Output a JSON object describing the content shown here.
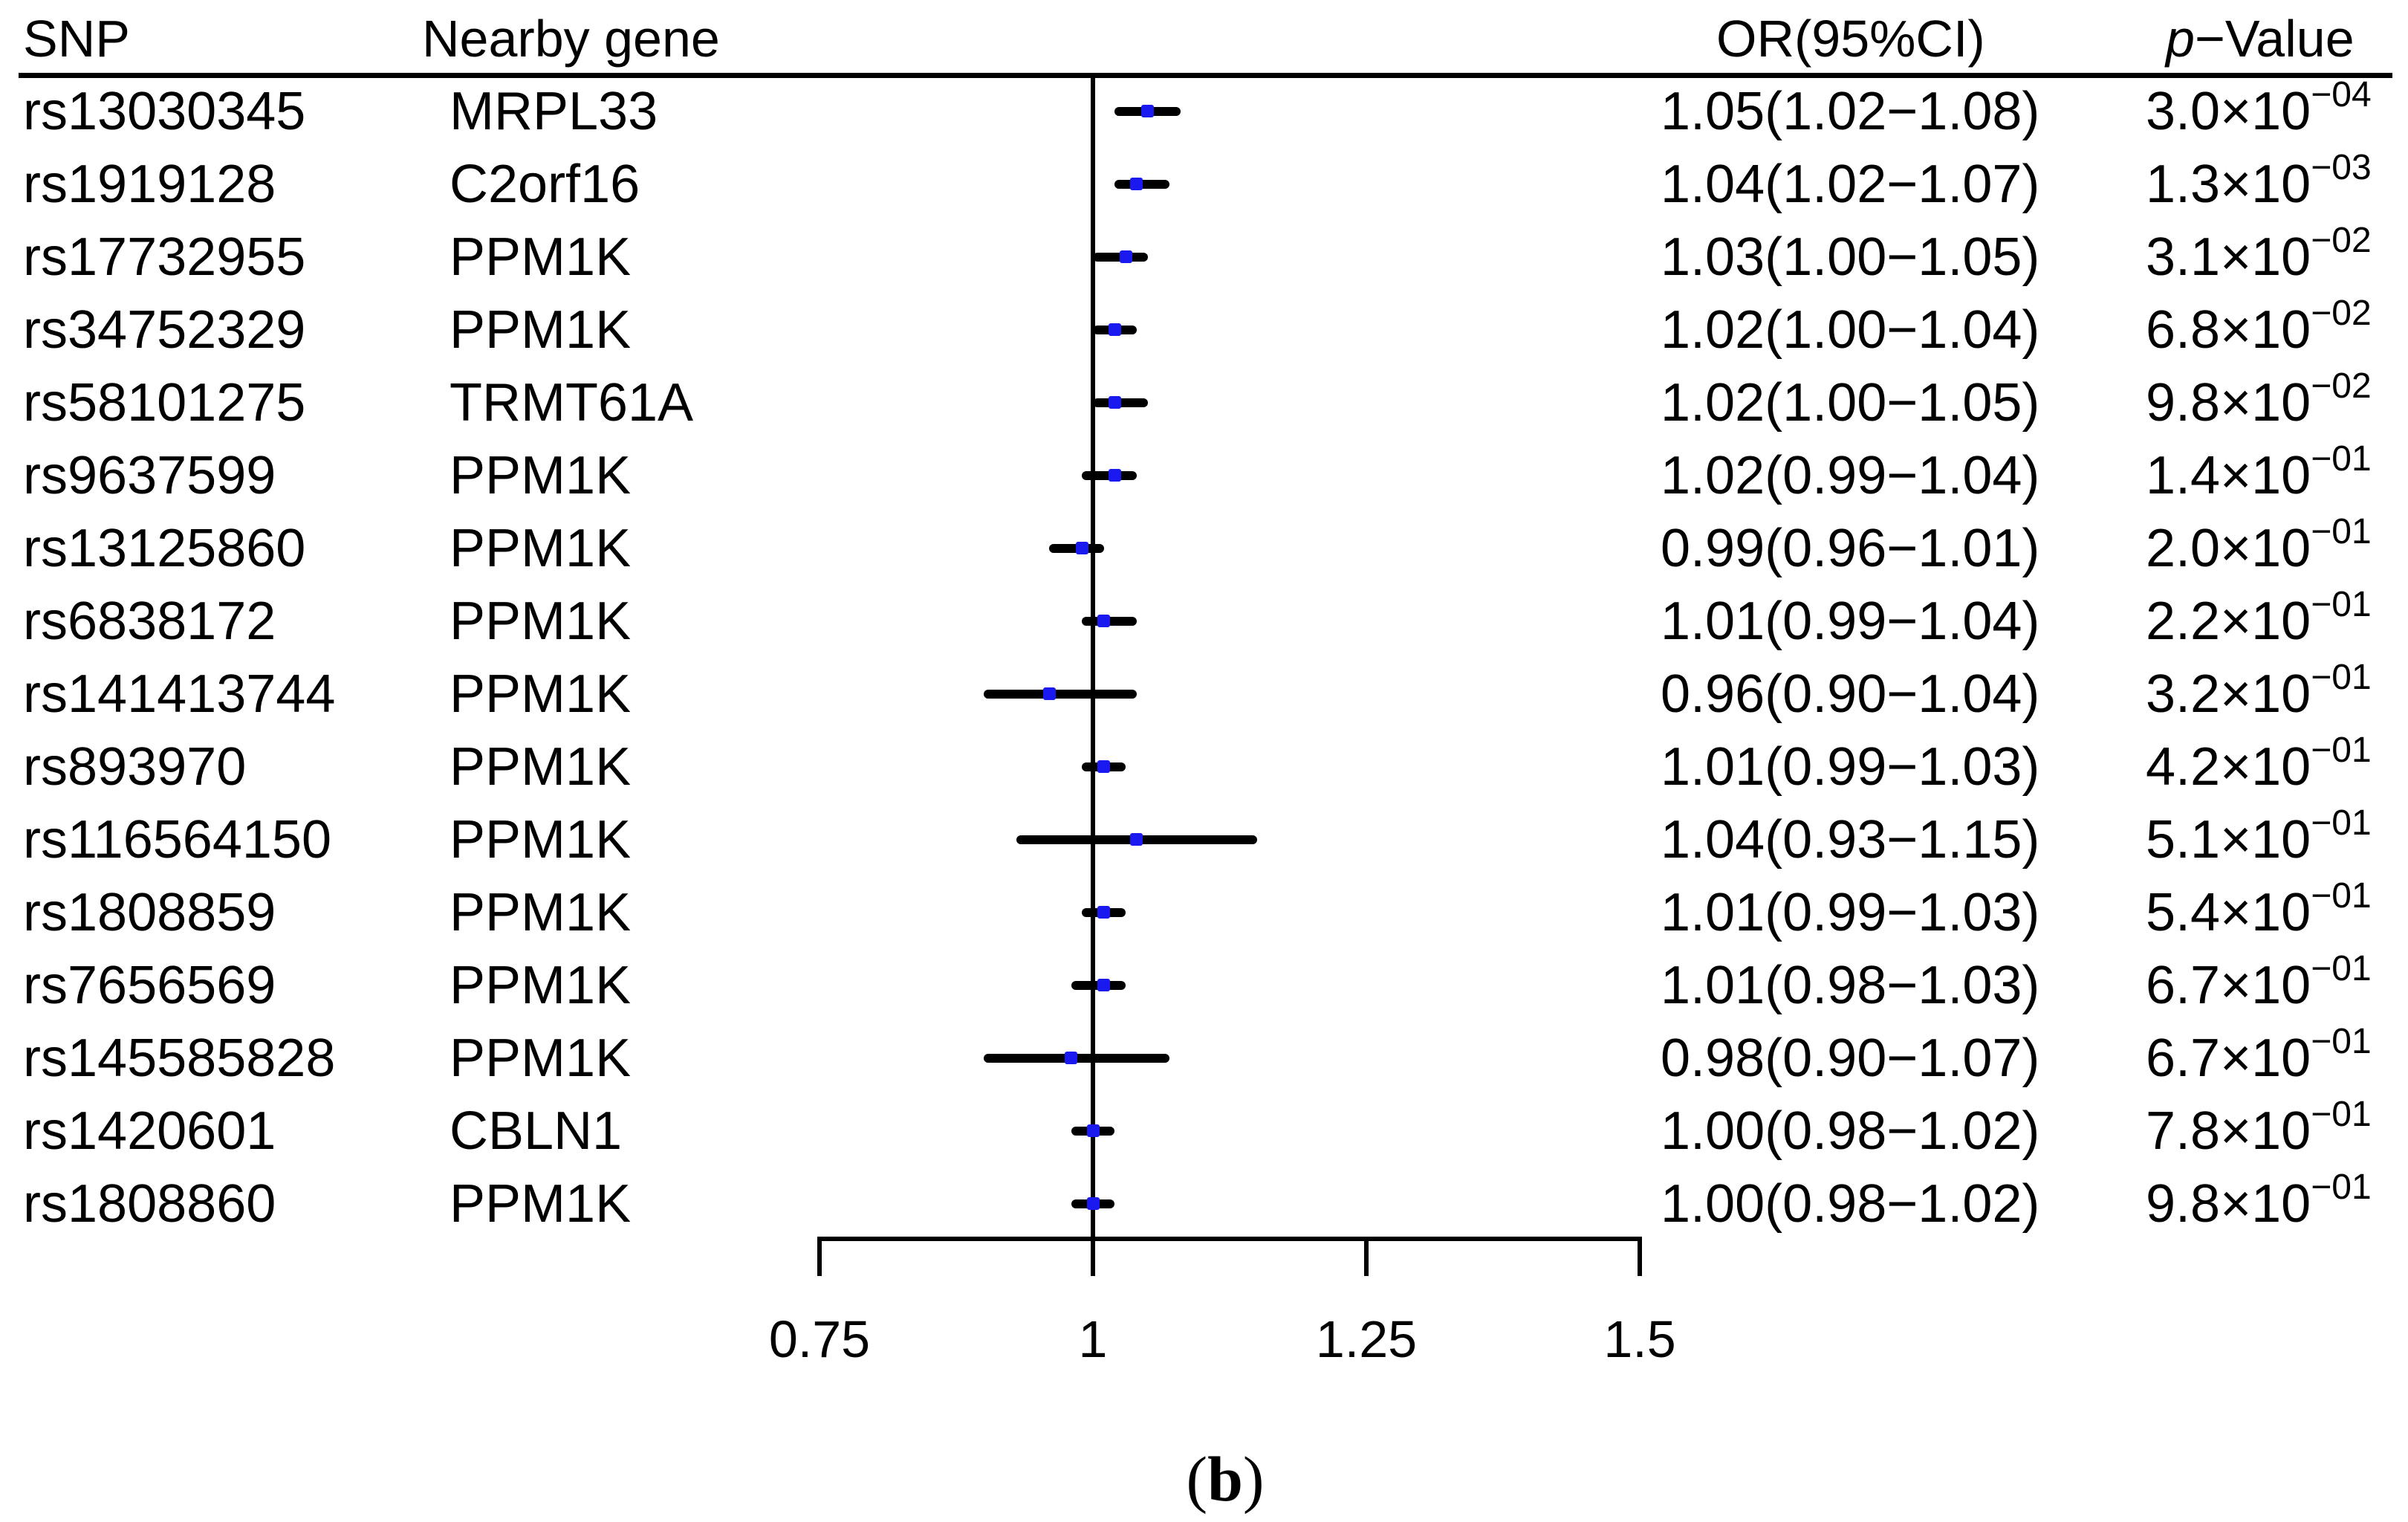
{
  "headers": {
    "snp": "SNP",
    "gene": "Nearby gene",
    "or": "OR(95%CI)",
    "p_italic": "p",
    "p_rest": "−Value"
  },
  "axis": {
    "tick_labels": [
      "0.75",
      "1",
      "1.25",
      "1.5"
    ]
  },
  "caption": {
    "open": "(",
    "letter": "b",
    "close": ")"
  },
  "colors": {
    "point": "#1a1af0",
    "line": "#000000",
    "text": "#000000",
    "background": "#ffffff"
  },
  "chart_data": {
    "type": "scatter",
    "subtype": "forest-plot",
    "title": "",
    "xlabel": "",
    "ylabel": "",
    "xlim": [
      0.75,
      1.5
    ],
    "x_ticks": [
      0.75,
      1,
      1.25,
      1.5
    ],
    "reference_line_x": 1,
    "grid": false,
    "legend": null,
    "marker": "blue-square",
    "columns": [
      "SNP",
      "Nearby gene",
      "OR(95%CI)",
      "p-Value"
    ],
    "rows": [
      {
        "snp": "rs13030345",
        "gene": "MRPL33",
        "or": 1.05,
        "ci_low": 1.02,
        "ci_high": 1.08,
        "or_ci_text": "1.05(1.02−1.08)",
        "p_prefix": "3.0×10",
        "p_sup": "−04",
        "p_value": 0.0003
      },
      {
        "snp": "rs1919128",
        "gene": "C2orf16",
        "or": 1.04,
        "ci_low": 1.02,
        "ci_high": 1.07,
        "or_ci_text": "1.04(1.02−1.07)",
        "p_prefix": "1.3×10",
        "p_sup": "−03",
        "p_value": 0.0013
      },
      {
        "snp": "rs17732955",
        "gene": "PPM1K",
        "or": 1.03,
        "ci_low": 1.0,
        "ci_high": 1.05,
        "or_ci_text": "1.03(1.00−1.05)",
        "p_prefix": "3.1×10",
        "p_sup": "−02",
        "p_value": 0.031
      },
      {
        "snp": "rs34752329",
        "gene": "PPM1K",
        "or": 1.02,
        "ci_low": 1.0,
        "ci_high": 1.04,
        "or_ci_text": "1.02(1.00−1.04)",
        "p_prefix": "6.8×10",
        "p_sup": "−02",
        "p_value": 0.068
      },
      {
        "snp": "rs58101275",
        "gene": "TRMT61A",
        "or": 1.02,
        "ci_low": 1.0,
        "ci_high": 1.05,
        "or_ci_text": "1.02(1.00−1.05)",
        "p_prefix": "9.8×10",
        "p_sup": "−02",
        "p_value": 0.098
      },
      {
        "snp": "rs9637599",
        "gene": "PPM1K",
        "or": 1.02,
        "ci_low": 0.99,
        "ci_high": 1.04,
        "or_ci_text": "1.02(0.99−1.04)",
        "p_prefix": "1.4×10",
        "p_sup": "−01",
        "p_value": 0.14
      },
      {
        "snp": "rs13125860",
        "gene": "PPM1K",
        "or": 0.99,
        "ci_low": 0.96,
        "ci_high": 1.01,
        "or_ci_text": "0.99(0.96−1.01)",
        "p_prefix": "2.0×10",
        "p_sup": "−01",
        "p_value": 0.2
      },
      {
        "snp": "rs6838172",
        "gene": "PPM1K",
        "or": 1.01,
        "ci_low": 0.99,
        "ci_high": 1.04,
        "or_ci_text": "1.01(0.99−1.04)",
        "p_prefix": "2.2×10",
        "p_sup": "−01",
        "p_value": 0.22
      },
      {
        "snp": "rs141413744",
        "gene": "PPM1K",
        "or": 0.96,
        "ci_low": 0.9,
        "ci_high": 1.04,
        "or_ci_text": "0.96(0.90−1.04)",
        "p_prefix": "3.2×10",
        "p_sup": "−01",
        "p_value": 0.32
      },
      {
        "snp": "rs893970",
        "gene": "PPM1K",
        "or": 1.01,
        "ci_low": 0.99,
        "ci_high": 1.03,
        "or_ci_text": "1.01(0.99−1.03)",
        "p_prefix": "4.2×10",
        "p_sup": "−01",
        "p_value": 0.42
      },
      {
        "snp": "rs116564150",
        "gene": "PPM1K",
        "or": 1.04,
        "ci_low": 0.93,
        "ci_high": 1.15,
        "or_ci_text": "1.04(0.93−1.15)",
        "p_prefix": "5.1×10",
        "p_sup": "−01",
        "p_value": 0.51
      },
      {
        "snp": "rs1808859",
        "gene": "PPM1K",
        "or": 1.01,
        "ci_low": 0.99,
        "ci_high": 1.03,
        "or_ci_text": "1.01(0.99−1.03)",
        "p_prefix": "5.4×10",
        "p_sup": "−01",
        "p_value": 0.54
      },
      {
        "snp": "rs7656569",
        "gene": "PPM1K",
        "or": 1.01,
        "ci_low": 0.98,
        "ci_high": 1.03,
        "or_ci_text": "1.01(0.98−1.03)",
        "p_prefix": "6.7×10",
        "p_sup": "−01",
        "p_value": 0.67
      },
      {
        "snp": "rs145585828",
        "gene": "PPM1K",
        "or": 0.98,
        "ci_low": 0.9,
        "ci_high": 1.07,
        "or_ci_text": "0.98(0.90−1.07)",
        "p_prefix": "6.7×10",
        "p_sup": "−01",
        "p_value": 0.67
      },
      {
        "snp": "rs1420601",
        "gene": "CBLN1",
        "or": 1.0,
        "ci_low": 0.98,
        "ci_high": 1.02,
        "or_ci_text": "1.00(0.98−1.02)",
        "p_prefix": "7.8×10",
        "p_sup": "−01",
        "p_value": 0.78
      },
      {
        "snp": "rs1808860",
        "gene": "PPM1K",
        "or": 1.0,
        "ci_low": 0.98,
        "ci_high": 1.02,
        "or_ci_text": "1.00(0.98−1.02)",
        "p_prefix": "9.8×10",
        "p_sup": "−01",
        "p_value": 0.98
      }
    ]
  }
}
